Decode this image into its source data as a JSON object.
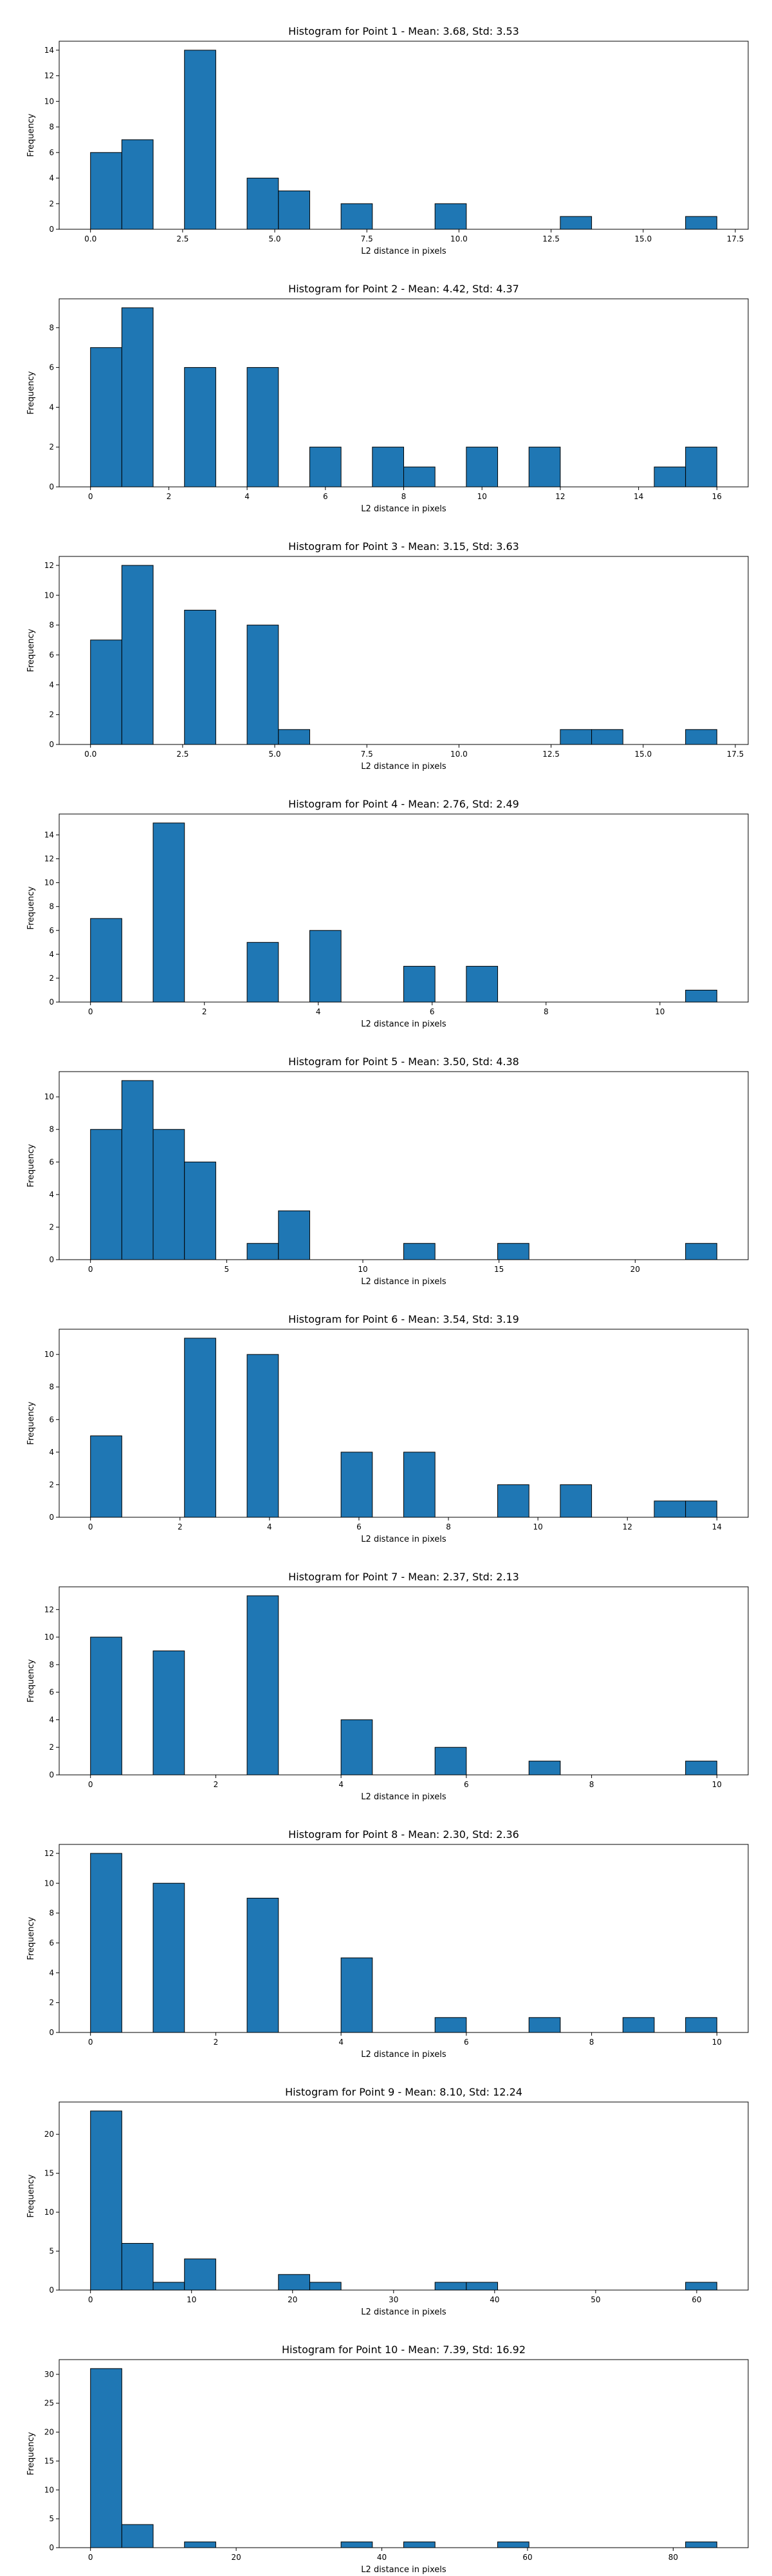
{
  "chart_data": [
    {
      "type": "bar",
      "title": "Histogram for Point 1 - Mean: 3.68, Std: 3.53",
      "xlabel": "L2 distance in pixels",
      "ylabel": "Frequency",
      "xlim": [
        -0.85,
        17.85
      ],
      "ylim": [
        0,
        14.7
      ],
      "xticks": [
        0.0,
        2.5,
        5.0,
        7.5,
        10.0,
        12.5,
        15.0,
        17.5
      ],
      "xtick_labels": [
        "0.0",
        "2.5",
        "5.0",
        "7.5",
        "10.0",
        "12.5",
        "15.0",
        "17.5"
      ],
      "yticks": [
        0,
        2,
        4,
        6,
        8,
        10,
        12,
        14
      ],
      "bin_width": 0.85,
      "bins": [
        [
          0.0,
          6
        ],
        [
          0.85,
          7
        ],
        [
          2.55,
          14
        ],
        [
          4.25,
          4
        ],
        [
          5.1,
          3
        ],
        [
          6.8,
          2
        ],
        [
          9.35,
          2
        ],
        [
          12.75,
          1
        ],
        [
          16.15,
          1
        ]
      ]
    },
    {
      "type": "bar",
      "title": "Histogram for Point 2 - Mean: 4.42, Std: 4.37",
      "xlabel": "L2 distance in pixels",
      "ylabel": "Frequency",
      "xlim": [
        -0.8,
        16.8
      ],
      "ylim": [
        0,
        9.45
      ],
      "xticks": [
        0,
        2,
        4,
        6,
        8,
        10,
        12,
        14,
        16
      ],
      "xtick_labels": [
        "0",
        "2",
        "4",
        "6",
        "8",
        "10",
        "12",
        "14",
        "16"
      ],
      "yticks": [
        0,
        2,
        4,
        6,
        8
      ],
      "bin_width": 0.8,
      "bins": [
        [
          0.0,
          7
        ],
        [
          0.8,
          9
        ],
        [
          2.4,
          6
        ],
        [
          4.0,
          6
        ],
        [
          5.6,
          2
        ],
        [
          7.2,
          2
        ],
        [
          8.0,
          1
        ],
        [
          9.6,
          2
        ],
        [
          11.2,
          2
        ],
        [
          14.4,
          1
        ],
        [
          15.2,
          2
        ]
      ]
    },
    {
      "type": "bar",
      "title": "Histogram for Point 3 - Mean: 3.15, Std: 3.63",
      "xlabel": "L2 distance in pixels",
      "ylabel": "Frequency",
      "xlim": [
        -0.85,
        17.85
      ],
      "ylim": [
        0,
        12.6
      ],
      "xticks": [
        0.0,
        2.5,
        5.0,
        7.5,
        10.0,
        12.5,
        15.0,
        17.5
      ],
      "xtick_labels": [
        "0.0",
        "2.5",
        "5.0",
        "7.5",
        "10.0",
        "12.5",
        "15.0",
        "17.5"
      ],
      "yticks": [
        0,
        2,
        4,
        6,
        8,
        10,
        12
      ],
      "bin_width": 0.85,
      "bins": [
        [
          0.0,
          7
        ],
        [
          0.85,
          12
        ],
        [
          2.55,
          9
        ],
        [
          4.25,
          8
        ],
        [
          5.1,
          1
        ],
        [
          12.75,
          1
        ],
        [
          13.6,
          1
        ],
        [
          16.15,
          1
        ]
      ]
    },
    {
      "type": "bar",
      "title": "Histogram for Point 4 - Mean: 2.76, Std: 2.49",
      "xlabel": "L2 distance in pixels",
      "ylabel": "Frequency",
      "xlim": [
        -0.55,
        11.55
      ],
      "ylim": [
        0,
        15.75
      ],
      "xticks": [
        0,
        2,
        4,
        6,
        8,
        10
      ],
      "xtick_labels": [
        "0",
        "2",
        "4",
        "6",
        "8",
        "10"
      ],
      "yticks": [
        0,
        2,
        4,
        6,
        8,
        10,
        12,
        14
      ],
      "bin_width": 0.55,
      "bins": [
        [
          0.0,
          7
        ],
        [
          1.1,
          15
        ],
        [
          2.75,
          5
        ],
        [
          3.85,
          6
        ],
        [
          5.5,
          3
        ],
        [
          6.6,
          3
        ],
        [
          10.45,
          1
        ]
      ]
    },
    {
      "type": "bar",
      "title": "Histogram for Point 5 - Mean: 3.50, Std: 4.38",
      "xlabel": "L2 distance in pixels",
      "ylabel": "Frequency",
      "xlim": [
        -1.15,
        24.15
      ],
      "ylim": [
        0,
        11.55
      ],
      "xticks": [
        0,
        5,
        10,
        15,
        20
      ],
      "xtick_labels": [
        "0",
        "5",
        "10",
        "15",
        "20"
      ],
      "yticks": [
        0,
        2,
        4,
        6,
        8,
        10
      ],
      "bin_width": 1.15,
      "bins": [
        [
          0.0,
          8
        ],
        [
          1.15,
          11
        ],
        [
          2.3,
          8
        ],
        [
          3.45,
          6
        ],
        [
          5.75,
          1
        ],
        [
          6.9,
          3
        ],
        [
          11.5,
          1
        ],
        [
          14.95,
          1
        ],
        [
          21.85,
          1
        ]
      ]
    },
    {
      "type": "bar",
      "title": "Histogram for Point 6 - Mean: 3.54, Std: 3.19",
      "xlabel": "L2 distance in pixels",
      "ylabel": "Frequency",
      "xlim": [
        -0.7,
        14.7
      ],
      "ylim": [
        0,
        11.55
      ],
      "xticks": [
        0,
        2,
        4,
        6,
        8,
        10,
        12,
        14
      ],
      "xtick_labels": [
        "0",
        "2",
        "4",
        "6",
        "8",
        "10",
        "12",
        "14"
      ],
      "yticks": [
        0,
        2,
        4,
        6,
        8,
        10
      ],
      "bin_width": 0.7,
      "bins": [
        [
          0.0,
          5
        ],
        [
          2.1,
          11
        ],
        [
          3.5,
          10
        ],
        [
          5.6,
          4
        ],
        [
          7.0,
          4
        ],
        [
          9.1,
          2
        ],
        [
          10.5,
          2
        ],
        [
          12.6,
          1
        ],
        [
          13.3,
          1
        ]
      ]
    },
    {
      "type": "bar",
      "title": "Histogram for Point 7 - Mean: 2.37, Std: 2.13",
      "xlabel": "L2 distance in pixels",
      "ylabel": "Frequency",
      "xlim": [
        -0.5,
        10.5
      ],
      "ylim": [
        0,
        13.65
      ],
      "xticks": [
        0,
        2,
        4,
        6,
        8,
        10
      ],
      "xtick_labels": [
        "0",
        "2",
        "4",
        "6",
        "8",
        "10"
      ],
      "yticks": [
        0,
        2,
        4,
        6,
        8,
        10,
        12
      ],
      "bin_width": 0.5,
      "bins": [
        [
          0.0,
          10
        ],
        [
          1.0,
          9
        ],
        [
          2.5,
          13
        ],
        [
          4.0,
          4
        ],
        [
          5.5,
          2
        ],
        [
          7.0,
          1
        ],
        [
          9.5,
          1
        ]
      ]
    },
    {
      "type": "bar",
      "title": "Histogram for Point 8 - Mean: 2.30, Std: 2.36",
      "xlabel": "L2 distance in pixels",
      "ylabel": "Frequency",
      "xlim": [
        -0.5,
        10.5
      ],
      "ylim": [
        0,
        12.6
      ],
      "xticks": [
        0,
        2,
        4,
        6,
        8,
        10
      ],
      "xtick_labels": [
        "0",
        "2",
        "4",
        "6",
        "8",
        "10"
      ],
      "yticks": [
        0,
        2,
        4,
        6,
        8,
        10,
        12
      ],
      "bin_width": 0.5,
      "bins": [
        [
          0.0,
          12
        ],
        [
          1.0,
          10
        ],
        [
          2.5,
          9
        ],
        [
          4.0,
          5
        ],
        [
          5.5,
          1
        ],
        [
          7.0,
          1
        ],
        [
          8.5,
          1
        ],
        [
          9.5,
          1
        ]
      ]
    },
    {
      "type": "bar",
      "title": "Histogram for Point 9 - Mean: 8.10, Std: 12.24",
      "xlabel": "L2 distance in pixels",
      "ylabel": "Frequency",
      "xlim": [
        -3.1,
        65.1
      ],
      "ylim": [
        0,
        24.15
      ],
      "xticks": [
        0,
        10,
        20,
        30,
        40,
        50,
        60
      ],
      "xtick_labels": [
        "0",
        "10",
        "20",
        "30",
        "40",
        "50",
        "60"
      ],
      "yticks": [
        0,
        5,
        10,
        15,
        20
      ],
      "bin_width": 3.1,
      "bins": [
        [
          0.0,
          23
        ],
        [
          3.1,
          6
        ],
        [
          6.2,
          1
        ],
        [
          9.3,
          4
        ],
        [
          18.6,
          2
        ],
        [
          21.7,
          1
        ],
        [
          34.1,
          1
        ],
        [
          37.2,
          1
        ],
        [
          58.9,
          1
        ]
      ]
    },
    {
      "type": "bar",
      "title": "Histogram for Point 10 - Mean: 7.39, Std: 16.92",
      "xlabel": "L2 distance in pixels",
      "ylabel": "Frequency",
      "xlim": [
        -4.3,
        90.3
      ],
      "ylim": [
        0,
        32.55
      ],
      "xticks": [
        0,
        20,
        40,
        60,
        80
      ],
      "xtick_labels": [
        "0",
        "20",
        "40",
        "60",
        "80"
      ],
      "yticks": [
        0,
        5,
        10,
        15,
        20,
        25,
        30
      ],
      "bin_width": 4.3,
      "bins": [
        [
          0.0,
          31
        ],
        [
          4.3,
          4
        ],
        [
          12.9,
          1
        ],
        [
          34.4,
          1
        ],
        [
          43.0,
          1
        ],
        [
          55.9,
          1
        ],
        [
          81.7,
          1
        ]
      ]
    }
  ]
}
